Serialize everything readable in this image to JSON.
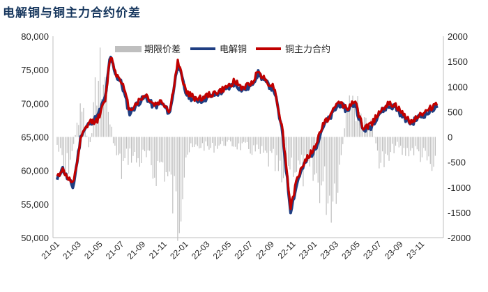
{
  "title": "电解铜与铜主力合约价差",
  "chart_data": {
    "type": "line+bar",
    "title": "电解铜与铜主力合约价差",
    "left_axis": {
      "min": 50000,
      "max": 80000,
      "step": 5000,
      "tick_labels": [
        "50,000",
        "55,000",
        "60,000",
        "65,000",
        "70,000",
        "75,000",
        "80,000"
      ]
    },
    "right_axis": {
      "min": -2000,
      "max": 2000,
      "step": 500,
      "tick_labels": [
        "-2000",
        "-1500",
        "-1000",
        "-500",
        "0",
        "500",
        "1000",
        "1500",
        "2000"
      ]
    },
    "x_tick_labels": [
      "21-01",
      "21-03",
      "21-05",
      "21-07",
      "21-09",
      "21-11",
      "22-01",
      "22-03",
      "22-05",
      "22-07",
      "22-09",
      "22-11",
      "23-01",
      "23-03",
      "23-05",
      "23-07",
      "23-09",
      "23-11"
    ],
    "legend": {
      "placement": "top",
      "entries": [
        {
          "name": "期限价差",
          "color": "#bfbfbf",
          "kind": "bar"
        },
        {
          "name": "电解铜",
          "color": "#1f3e82",
          "kind": "line"
        },
        {
          "name": "铜主力合约",
          "color": "#c00000",
          "kind": "line"
        }
      ]
    },
    "series": [
      {
        "name": "电解铜",
        "axis": "left",
        "color": "#1f3e82",
        "x": [
          0,
          0.3,
          0.6,
          1,
          1.5,
          2,
          2.5,
          3,
          3.3,
          3.7,
          4,
          4.5,
          5,
          5.5,
          6,
          6.5,
          7,
          7.5,
          8,
          8.5,
          9,
          9.5,
          10,
          10.5,
          11,
          11.5,
          12,
          12.5,
          13,
          13.5,
          14,
          14.5,
          15,
          15.5,
          16,
          16.5,
          17,
          17.5,
          18,
          18.5,
          19,
          19.5,
          20,
          20.5,
          21,
          21.5,
          22,
          22.5,
          23,
          23.5
        ],
        "values": [
          58500,
          60500,
          59000,
          57500,
          65500,
          67000,
          68000,
          71000,
          77000,
          74000,
          73000,
          68500,
          70000,
          71000,
          69500,
          70000,
          68500,
          76000,
          71500,
          70500,
          70500,
          71000,
          71500,
          72000,
          73000,
          72000,
          72500,
          74500,
          73000,
          72000,
          65500,
          54000,
          59000,
          61500,
          63000,
          66500,
          68000,
          70000,
          69000,
          70000,
          66000,
          66500,
          68500,
          69500,
          69500,
          68000,
          67000,
          68000,
          68500,
          69500
        ]
      },
      {
        "name": "铜主力合约",
        "axis": "left",
        "color": "#c00000",
        "x": [
          0,
          0.3,
          0.6,
          1,
          1.5,
          2,
          2.5,
          3,
          3.3,
          3.7,
          4,
          4.5,
          5,
          5.5,
          6,
          6.5,
          7,
          7.5,
          8,
          8.5,
          9,
          9.5,
          10,
          10.5,
          11,
          11.5,
          12,
          12.5,
          13,
          13.5,
          14,
          14.5,
          15,
          15.5,
          16,
          16.5,
          17,
          17.5,
          18,
          18.5,
          19,
          19.5,
          20,
          20.5,
          21,
          21.5,
          22,
          22.5,
          23,
          23.5
        ],
        "values": [
          59000,
          60200,
          59200,
          57800,
          65000,
          67200,
          67500,
          70500,
          77300,
          74200,
          73500,
          69000,
          70200,
          71300,
          69800,
          70300,
          68800,
          76200,
          71800,
          70800,
          70800,
          71300,
          71700,
          72300,
          73300,
          72300,
          72800,
          74800,
          73300,
          72400,
          66000,
          54500,
          59500,
          61800,
          63300,
          66800,
          68300,
          70300,
          69300,
          70300,
          66300,
          66800,
          68800,
          69800,
          69800,
          68300,
          67300,
          68300,
          68800,
          70000
        ]
      },
      {
        "name": "期限价差",
        "axis": "right",
        "color": "#bfbfbf",
        "x": [
          0,
          0.5,
          1,
          1.5,
          2,
          2.5,
          3,
          3.5,
          4,
          4.5,
          5,
          5.5,
          6,
          6.5,
          7,
          7.5,
          8,
          8.5,
          9,
          9.5,
          10,
          10.5,
          11,
          11.5,
          12,
          12.5,
          13,
          13.5,
          14,
          14.5,
          15,
          15.5,
          16,
          16.5,
          17,
          17.5,
          18,
          18.5,
          19,
          19.5,
          20,
          20.5,
          21,
          21.5,
          22,
          22.5,
          23,
          23.5
        ],
        "values": [
          -200,
          -900,
          -300,
          1000,
          -400,
          1500,
          1400,
          -200,
          -800,
          -400,
          -600,
          -500,
          -900,
          -600,
          -1200,
          -2000,
          -400,
          -300,
          -200,
          -300,
          -200,
          -150,
          -200,
          -250,
          -300,
          -400,
          -500,
          -700,
          -1200,
          -600,
          -800,
          -900,
          -1000,
          -1200,
          -1500,
          -900,
          600,
          800,
          400,
          300,
          -500,
          -700,
          -200,
          -400,
          -300,
          -400,
          -600,
          -1000
        ]
      }
    ]
  }
}
